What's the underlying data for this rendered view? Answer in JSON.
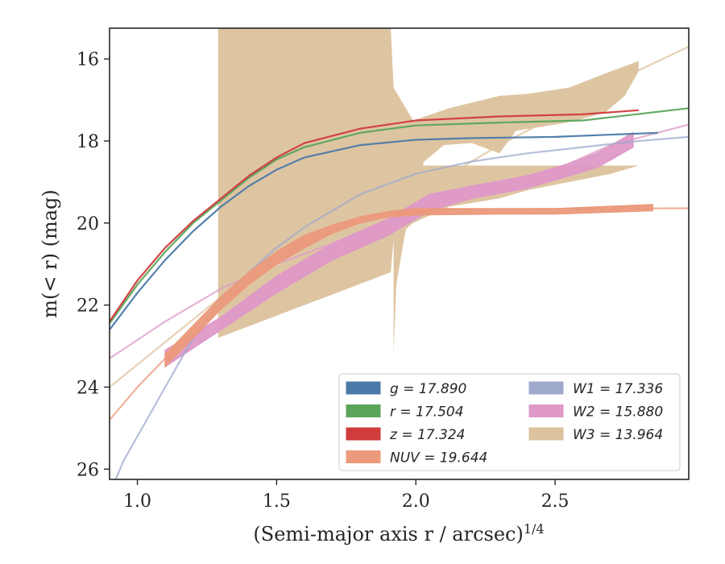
{
  "chart_data": {
    "type": "line",
    "xlabel": "(Semi-major axis r / arcsec)",
    "xlabel_sup": "1/4",
    "ylabel": "m(< r) (mag)",
    "xlim": [
      0.9,
      2.98
    ],
    "ylim": [
      26.25,
      15.25
    ],
    "y_inverted": true,
    "grid": false,
    "legend_position": "lower-right",
    "x_ticks": [
      1.0,
      1.5,
      2.0,
      2.5
    ],
    "x_tick_labels": [
      "1.0",
      "1.5",
      "2.0",
      "2.5"
    ],
    "y_ticks": [
      16,
      18,
      20,
      22,
      24,
      26
    ],
    "y_tick_labels": [
      "16",
      "18",
      "20",
      "22",
      "24",
      "26"
    ],
    "legend": [
      {
        "label": "g = 17.890",
        "color": "#4c7aa8"
      },
      {
        "label": "r = 17.504",
        "color": "#5aa55a"
      },
      {
        "label": "z = 17.324",
        "color": "#d03b3b"
      },
      {
        "label": "NUV = 19.644",
        "color": "#eb9a7c"
      },
      {
        "label": "W1 = 17.336",
        "color": "#9ea9cc"
      },
      {
        "label": "W2 = 15.880",
        "color": "#de99c8"
      },
      {
        "label": "W3 = 13.964",
        "color": "#dcc29d"
      }
    ],
    "series": [
      {
        "name": "W3",
        "color": "#dcc29d",
        "band_x": [
          1.29,
          1.29,
          1.91,
          1.92,
          1.99,
          2.12,
          2.3,
          2.4,
          2.55,
          2.7,
          2.8,
          2.8,
          2.75,
          2.68,
          2.58,
          2.5,
          2.36,
          2.3,
          2.2,
          2.1,
          2.03,
          2.0,
          1.96,
          1.93,
          1.92,
          1.92
        ],
        "band_upper": [
          15.25,
          15.25,
          15.25,
          16.7,
          17.5,
          17.2,
          16.9,
          16.85,
          16.7,
          16.3,
          16.05,
          16.3,
          16.9,
          17.3,
          17.5,
          17.6,
          17.75,
          18.3,
          18.05,
          18.1,
          18.5,
          19.1,
          20.3,
          21.5,
          23.2,
          26.25
        ],
        "band_lower": [
          26.25,
          22.8,
          21.2,
          20.4,
          20.0,
          19.6,
          19.4,
          19.2,
          19.0,
          18.8,
          18.6,
          18.6,
          18.6,
          18.6,
          18.6,
          18.6,
          18.6,
          18.6,
          18.6,
          18.6,
          18.6,
          18.6,
          18.6,
          18.6,
          18.6,
          26.25
        ],
        "x": [
          0.9,
          1.1,
          1.3,
          1.5,
          1.7,
          1.9,
          2.1,
          2.3,
          2.5,
          2.7,
          2.98
        ],
        "y": [
          24.0,
          22.9,
          21.8,
          21.0,
          20.2,
          19.5,
          18.9,
          18.1,
          17.4,
          16.6,
          15.7
        ]
      },
      {
        "name": "W2",
        "color": "#de99c8",
        "x": [
          0.9,
          1.1,
          1.3,
          1.5,
          1.7,
          1.9,
          2.1,
          2.3,
          2.5,
          2.7,
          2.98
        ],
        "y": [
          23.3,
          22.4,
          21.6,
          21.0,
          20.5,
          20.0,
          19.5,
          19.0,
          18.7,
          18.1,
          17.6
        ],
        "band_x": [
          1.1,
          1.3,
          1.5,
          1.7,
          1.9,
          2.05,
          2.2,
          2.4,
          2.55,
          2.65,
          2.78
        ],
        "band_upper": [
          23.1,
          22.3,
          21.3,
          20.5,
          19.9,
          19.3,
          19.1,
          18.85,
          18.55,
          18.3,
          17.8
        ],
        "band_lower": [
          23.5,
          22.6,
          21.7,
          20.9,
          20.3,
          19.7,
          19.4,
          19.15,
          18.85,
          18.65,
          18.15
        ]
      },
      {
        "name": "W1",
        "color": "#9ea9cc",
        "x": [
          0.9,
          0.95,
          1.0,
          1.05,
          1.1,
          1.2,
          1.3,
          1.4,
          1.5,
          1.6,
          1.8,
          2.0,
          2.2,
          2.4,
          2.6,
          2.8,
          2.98
        ],
        "y": [
          26.6,
          25.8,
          25.2,
          24.6,
          24.0,
          22.8,
          21.9,
          21.2,
          20.6,
          20.1,
          19.3,
          18.8,
          18.5,
          18.3,
          18.15,
          18.0,
          17.9
        ]
      },
      {
        "name": "NUV",
        "color": "#eb9a7c",
        "x": [
          0.9,
          1.0,
          1.1,
          1.2,
          1.3,
          1.4,
          1.5,
          1.6,
          1.7,
          1.8,
          1.9,
          2.0,
          2.3,
          2.6,
          2.98
        ],
        "y": [
          24.8,
          24.0,
          23.3,
          22.6,
          22.0,
          21.4,
          20.9,
          20.5,
          20.2,
          19.9,
          19.75,
          19.7,
          19.66,
          19.65,
          19.64
        ],
        "band_x": [
          1.1,
          1.2,
          1.3,
          1.4,
          1.5,
          1.6,
          1.7,
          1.8,
          1.9,
          2.0,
          2.3,
          2.5,
          2.75,
          2.85
        ],
        "band_upper": [
          23.2,
          22.5,
          21.8,
          21.2,
          20.7,
          20.3,
          20.05,
          19.85,
          19.72,
          19.65,
          19.65,
          19.65,
          19.58,
          19.55
        ],
        "band_lower": [
          23.5,
          22.8,
          22.1,
          21.5,
          21.0,
          20.6,
          20.25,
          20.0,
          19.85,
          19.8,
          19.78,
          19.78,
          19.72,
          19.7
        ]
      },
      {
        "name": "g",
        "color": "#4c7aa8",
        "x": [
          0.9,
          1.0,
          1.1,
          1.2,
          1.3,
          1.4,
          1.5,
          1.6,
          1.8,
          2.0,
          2.2,
          2.5,
          2.87
        ],
        "y": [
          22.6,
          21.7,
          20.9,
          20.2,
          19.6,
          19.1,
          18.7,
          18.4,
          18.1,
          17.97,
          17.93,
          17.9,
          17.8
        ]
      },
      {
        "name": "r",
        "color": "#5aa55a",
        "x": [
          0.9,
          1.0,
          1.1,
          1.2,
          1.3,
          1.4,
          1.5,
          1.6,
          1.8,
          2.0,
          2.3,
          2.6,
          2.98
        ],
        "y": [
          22.45,
          21.5,
          20.7,
          20.0,
          19.45,
          18.9,
          18.45,
          18.15,
          17.8,
          17.62,
          17.55,
          17.5,
          17.2
        ]
      },
      {
        "name": "z",
        "color": "#d03b3b",
        "x": [
          0.9,
          1.0,
          1.1,
          1.2,
          1.3,
          1.4,
          1.5,
          1.6,
          1.8,
          2.0,
          2.3,
          2.6,
          2.8
        ],
        "y": [
          22.4,
          21.4,
          20.6,
          19.95,
          19.4,
          18.85,
          18.4,
          18.05,
          17.7,
          17.5,
          17.4,
          17.35,
          17.25
        ]
      }
    ]
  }
}
